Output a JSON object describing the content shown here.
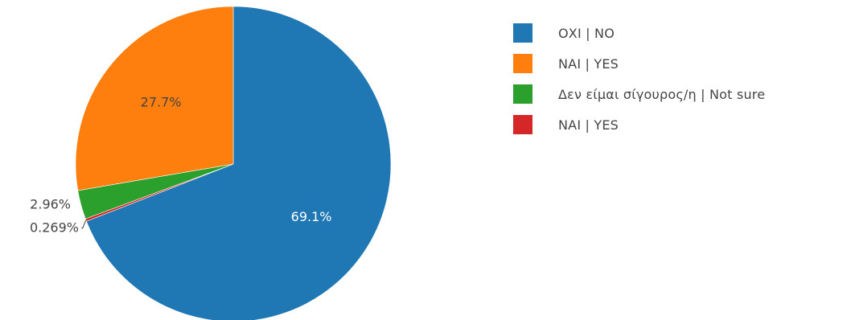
{
  "chart_data": {
    "type": "pie",
    "title": "",
    "slices": [
      {
        "label": "ΟΧΙ | NO",
        "value": 69.1,
        "percent_label": "69.1%",
        "color": "#1f77b4"
      },
      {
        "label": "NAI | YES",
        "value": 0.269,
        "percent_label": "0.269%",
        "color": "#d62728"
      },
      {
        "label": "Δεν είμαι σίγουρος/η | Not sure",
        "value": 2.96,
        "percent_label": "2.96%",
        "color": "#2ca02c"
      },
      {
        "label": "ΝΑΙ | YES",
        "value": 27.7,
        "percent_label": "27.7%",
        "color": "#ff7f0e"
      }
    ],
    "legend": {
      "position": "right",
      "items": [
        {
          "label": "ΟΧΙ | NO",
          "color": "#1f77b4"
        },
        {
          "label": "ΝΑΙ | YES",
          "color": "#ff7f0e"
        },
        {
          "label": "Δεν είμαι σίγουρος/η | Not sure",
          "color": "#2ca02c"
        },
        {
          "label": "NAI | YES",
          "color": "#d62728"
        }
      ]
    }
  }
}
